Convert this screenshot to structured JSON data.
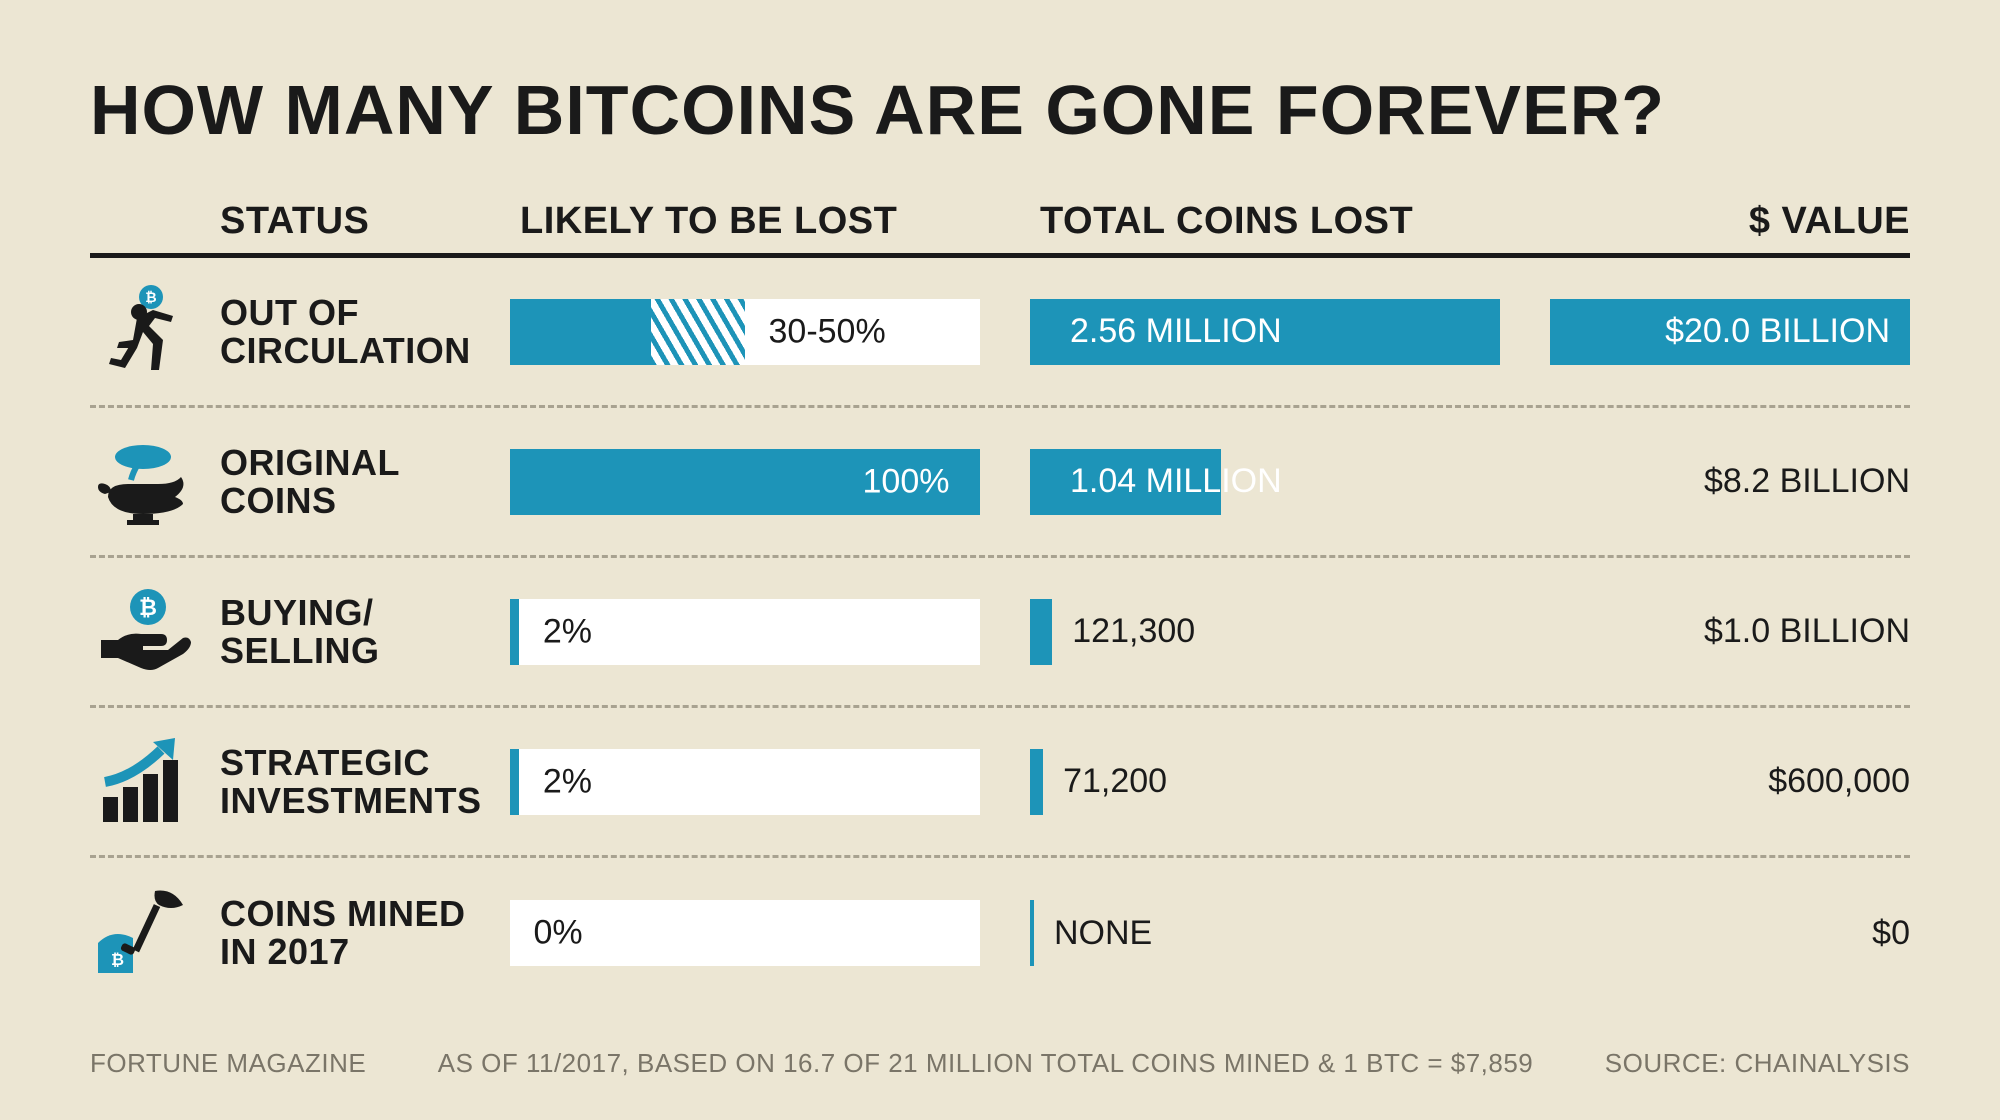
{
  "title": "HOW MANY BITCOINS ARE GONE FOREVER?",
  "columns": {
    "status": "STATUS",
    "likely": "LIKELY TO BE LOST",
    "total": "TOTAL COINS LOST",
    "value": "$ VALUE"
  },
  "colors": {
    "background": "#ece6d3",
    "accent": "#1d94b8",
    "text": "#1a1a1a",
    "bar_track": "#ffffff",
    "divider": "#a8a290",
    "footer_text": "#7a7568"
  },
  "typography": {
    "title_fontsize": 70,
    "header_fontsize": 38,
    "label_fontsize": 36,
    "data_fontsize": 34,
    "footer_fontsize": 26
  },
  "max_coins": 2560000,
  "rows": [
    {
      "status": "OUT OF\nCIRCULATION",
      "icon": "runner-coin-icon",
      "likely_label": "30-50%",
      "fill_pct": 30,
      "hatch_start": 30,
      "hatch_end": 50,
      "label_pos": 55,
      "label_color": "#1a1a1a",
      "coins_label": "2.56 MILLION",
      "coins_value": 2560000,
      "coins_inside": true,
      "value_label": "$20.0 BILLION",
      "value_filled": true
    },
    {
      "status": "ORIGINAL\nCOINS",
      "icon": "genie-lamp-icon",
      "likely_label": "100%",
      "fill_pct": 100,
      "hatch_start": 0,
      "hatch_end": 0,
      "label_pos": 75,
      "label_color": "#ffffff",
      "coins_label": "1.04 MILLION",
      "coins_value": 1040000,
      "coins_inside": true,
      "value_label": "$8.2 BILLION",
      "value_filled": false
    },
    {
      "status": "BUYING/\nSELLING",
      "icon": "hand-coin-icon",
      "likely_label": "2%",
      "fill_pct": 2,
      "hatch_start": 0,
      "hatch_end": 0,
      "label_pos": 7,
      "label_color": "#1a1a1a",
      "coins_label": "121,300",
      "coins_value": 121300,
      "coins_inside": false,
      "value_label": "$1.0 BILLION",
      "value_filled": false
    },
    {
      "status": "STRATEGIC\nINVESTMENTS",
      "icon": "bar-chart-arrow-icon",
      "likely_label": "2%",
      "fill_pct": 2,
      "hatch_start": 0,
      "hatch_end": 0,
      "label_pos": 7,
      "label_color": "#1a1a1a",
      "coins_label": "71,200",
      "coins_value": 71200,
      "coins_inside": false,
      "value_label": "$600,000",
      "value_filled": false
    },
    {
      "status": "COINS MINED\nIN 2017",
      "icon": "shovel-mine-icon",
      "likely_label": "0%",
      "fill_pct": 0,
      "hatch_start": 0,
      "hatch_end": 0,
      "label_pos": 5,
      "label_color": "#1a1a1a",
      "coins_label": "NONE",
      "coins_value": 0,
      "coins_inside": false,
      "value_label": "$0",
      "value_filled": false
    }
  ],
  "footer": {
    "left": "FORTUNE MAGAZINE",
    "center": "AS OF 11/2017, BASED ON 16.7 OF 21 MILLION TOTAL COINS MINED & 1 BTC = $7,859",
    "right": "SOURCE: CHAINALYSIS"
  }
}
